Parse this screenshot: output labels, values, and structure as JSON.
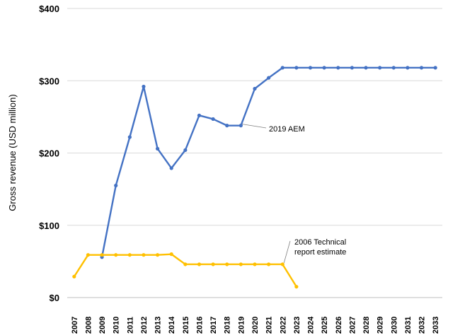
{
  "chart_data": {
    "type": "line",
    "ylabel": "Gross revenue (USD million)",
    "xlabel": "",
    "ylim": [
      0,
      400
    ],
    "y_ticks": [
      "$0",
      "$100",
      "$200",
      "$300",
      "$400"
    ],
    "y_tick_values": [
      0,
      100,
      200,
      300,
      400
    ],
    "grid": "horizontal",
    "categories": [
      "2007",
      "2008",
      "2009",
      "2010",
      "2011",
      "2012",
      "2013",
      "2014",
      "2015",
      "2016",
      "2017",
      "2018",
      "2019",
      "2020",
      "2021",
      "2022",
      "2023",
      "2024",
      "2025",
      "2026",
      "2027",
      "2028",
      "2029",
      "2030",
      "2031",
      "2032",
      "2033"
    ],
    "series": [
      {
        "name": "2019 AEM",
        "color": "#4472C4",
        "x": [
          "2009",
          "2010",
          "2011",
          "2012",
          "2013",
          "2014",
          "2015",
          "2016",
          "2017",
          "2018",
          "2019",
          "2020",
          "2021",
          "2022",
          "2023",
          "2024",
          "2025",
          "2026",
          "2027",
          "2028",
          "2029",
          "2030",
          "2031",
          "2032",
          "2033"
        ],
        "values": [
          56,
          155,
          222,
          292,
          206,
          179,
          204,
          252,
          247,
          238,
          238,
          289,
          304,
          318,
          318,
          318,
          318,
          318,
          318,
          318,
          318,
          318,
          318,
          318,
          318
        ]
      },
      {
        "name": "2006 Technical report estimate",
        "color": "#FFC000",
        "x": [
          "2007",
          "2008",
          "2009",
          "2010",
          "2011",
          "2012",
          "2013",
          "2014",
          "2015",
          "2016",
          "2017",
          "2018",
          "2019",
          "2020",
          "2021",
          "2022",
          "2023"
        ],
        "values": [
          29,
          59,
          59,
          59,
          59,
          59,
          59,
          60,
          46,
          46,
          46,
          46,
          46,
          46,
          46,
          46,
          15
        ]
      }
    ],
    "annotations": [
      {
        "series": 0,
        "lines": [
          "2019 AEM"
        ]
      },
      {
        "series": 1,
        "lines": [
          "2006 Technical",
          "report estimate"
        ]
      }
    ]
  }
}
